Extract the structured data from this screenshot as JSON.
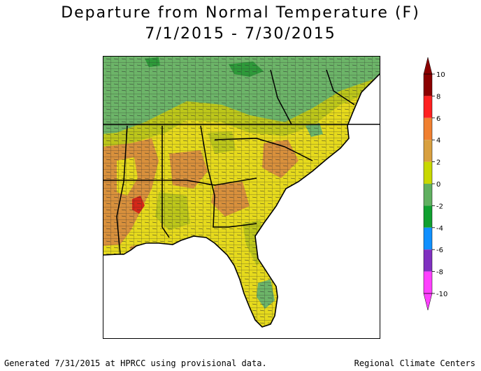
{
  "title": {
    "line1": "Departure from Normal Temperature (F)",
    "line2": "7/1/2015 - 7/30/2015"
  },
  "legend": {
    "labels": [
      "10",
      "8",
      "6",
      "4",
      "2",
      "0",
      "-2",
      "-4",
      "-6",
      "-8",
      "-10"
    ],
    "colors": [
      "#8b0000",
      "#ff2020",
      "#f08030",
      "#d8a040",
      "#f0e000",
      "#c8d800",
      "#60b060",
      "#10a030",
      "#1090ff",
      "#8030c0",
      "#ff40ff"
    ]
  },
  "map": {
    "region": "Southeast United States",
    "colors": {
      "yellow": "#e6da1c",
      "olive": "#bcc61a",
      "green": "#6cb468",
      "darkgreen": "#2e9a3a",
      "orange": "#d8903c",
      "red": "#d42818",
      "ocean": "#ffffff",
      "county_lines": "#222222"
    }
  },
  "footer": {
    "left": "Generated 7/31/2015 at HPRCC using provisional data.",
    "right": "Regional Climate Centers"
  }
}
